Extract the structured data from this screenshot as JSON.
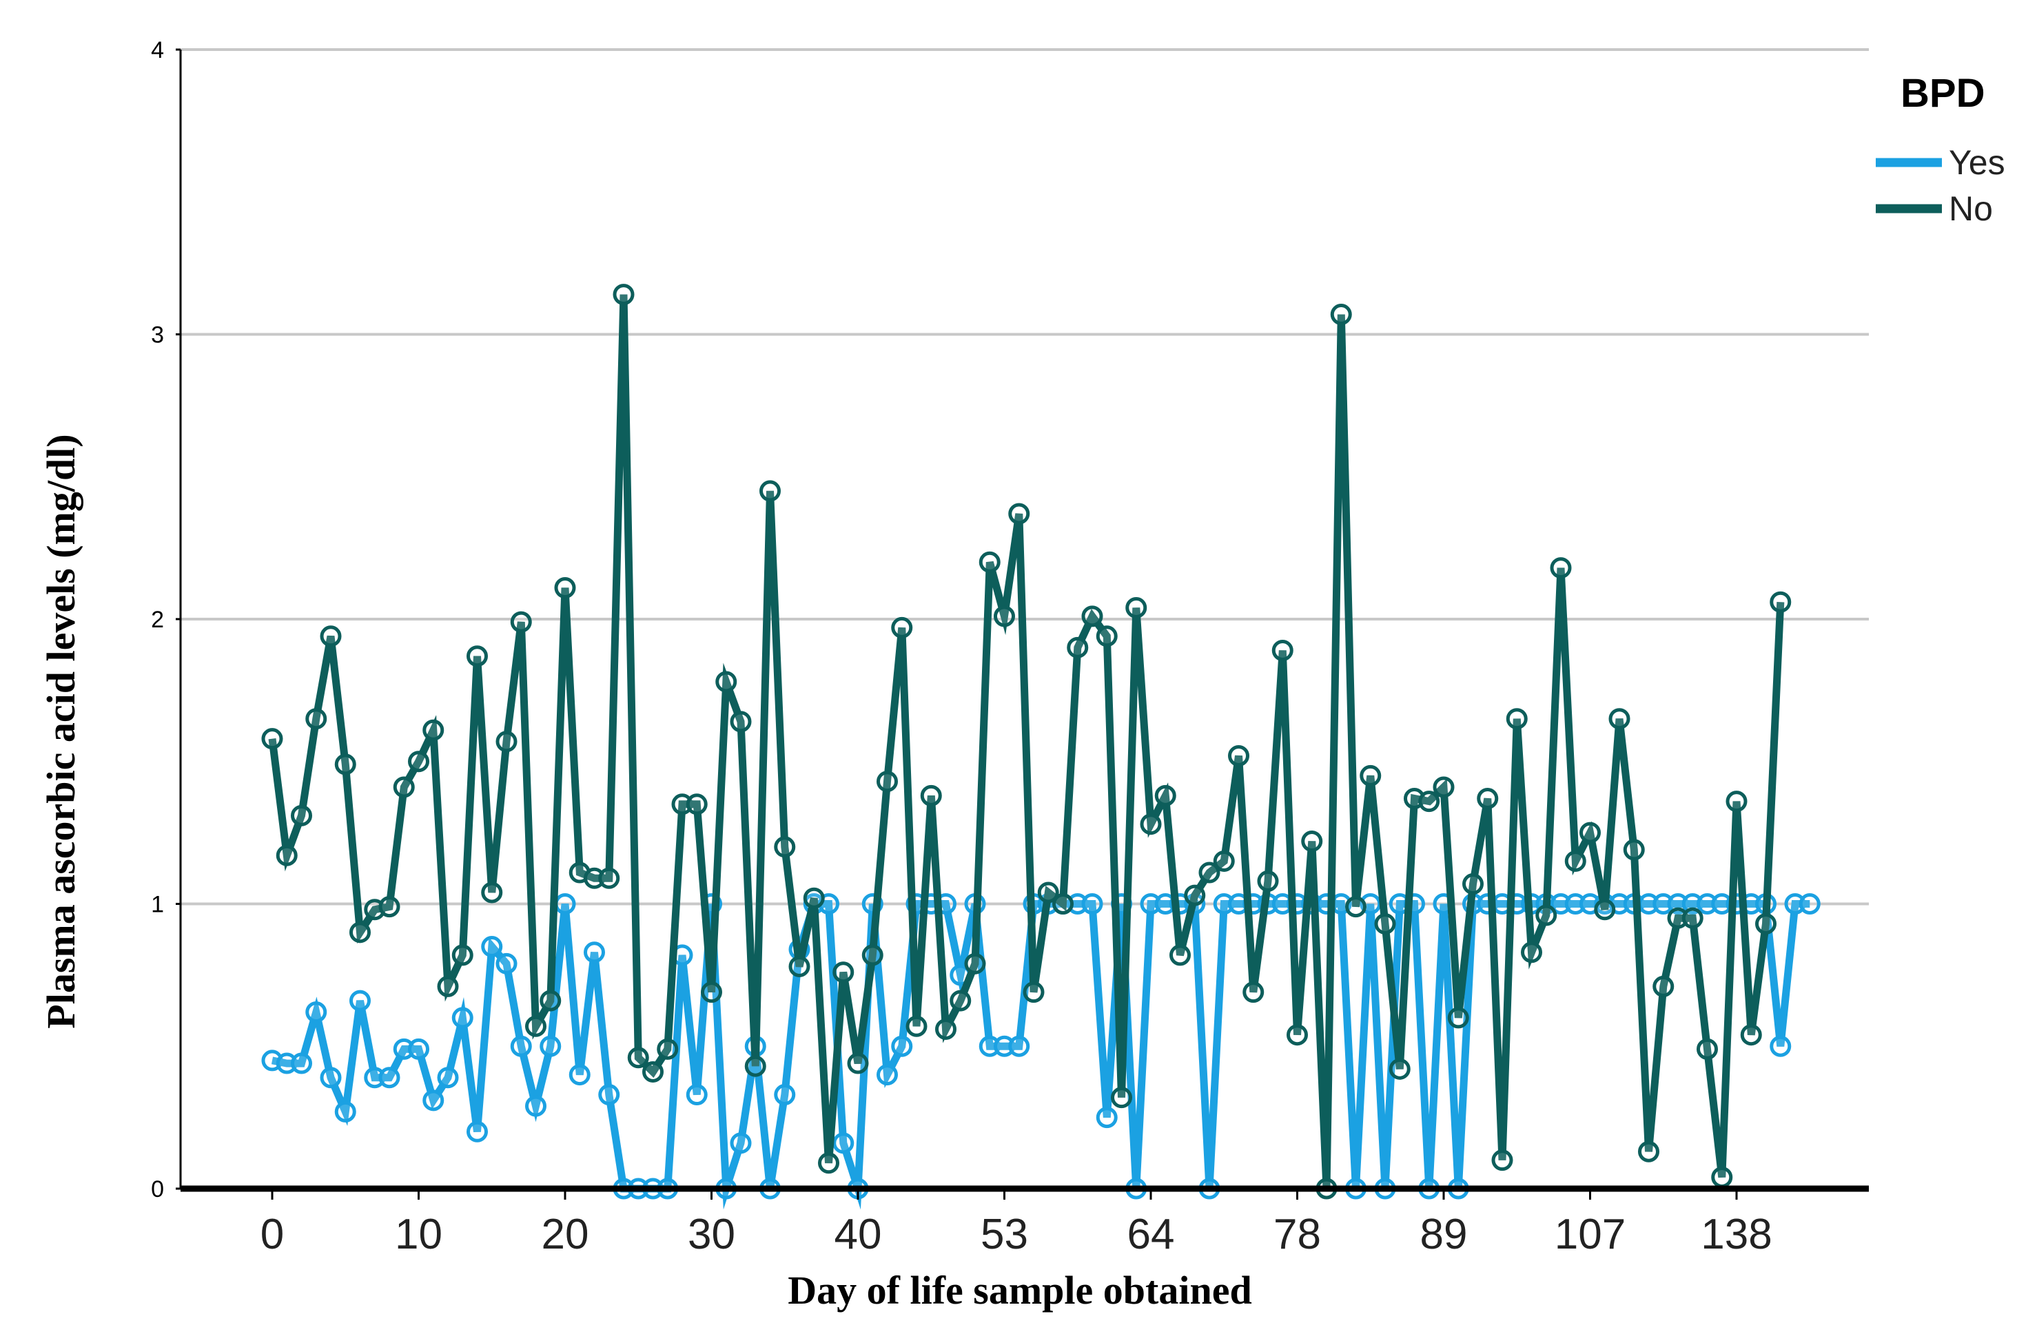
{
  "chart_data": {
    "type": "line",
    "title": "",
    "xlabel": "Day of life sample obtained",
    "ylabel": "Plasma ascorbic acid levels (mg/dl)",
    "ylim": [
      0,
      4
    ],
    "y_ticks": [
      0,
      1,
      2,
      3,
      4
    ],
    "x_tick_labels": [
      "0",
      "10",
      "20",
      "30",
      "40",
      "53",
      "64",
      "78",
      "89",
      "107",
      "138"
    ],
    "grid": true,
    "legend": {
      "title": "BPD",
      "position": "top-right"
    },
    "series": [
      {
        "name": "Yes",
        "color": "#1ba1e2",
        "values": [
          0.45,
          0.44,
          0.44,
          0.62,
          0.39,
          0.27,
          0.66,
          0.39,
          0.39,
          0.49,
          0.49,
          0.31,
          0.39,
          0.6,
          0.2,
          0.85,
          0.79,
          0.5,
          0.29,
          0.5,
          1.0,
          0.4,
          0.83,
          0.33,
          0.0,
          0.0,
          0.0,
          0.0,
          0.82,
          0.33,
          1.0,
          0.0,
          0.16,
          0.5,
          0.0,
          0.33,
          0.84,
          1.0,
          1.0,
          0.16,
          0.0,
          1.0,
          0.4,
          0.5,
          1.0,
          1.0,
          1.0,
          0.75,
          1.0,
          0.5,
          0.5,
          0.5,
          1.0,
          1.0,
          1.0,
          1.0,
          1.0,
          0.25,
          1.0,
          0.0,
          1.0,
          1.0,
          1.0,
          1.0,
          0.0,
          1.0,
          1.0,
          1.0,
          1.0,
          1.0,
          1.0,
          1.0,
          1.0,
          1.0,
          0.0,
          1.0,
          0.0,
          1.0,
          1.0,
          0.0,
          1.0,
          0.0,
          1.0,
          1.0,
          1.0,
          1.0,
          1.0,
          1.0,
          1.0,
          1.0,
          1.0,
          1.0,
          1.0,
          1.0,
          1.0,
          1.0,
          1.0,
          1.0,
          1.0,
          1.0,
          1.0,
          1.0,
          1.0,
          0.5,
          1.0,
          1.0
        ]
      },
      {
        "name": "No",
        "color": "#0d5e5b",
        "values": [
          1.58,
          1.17,
          1.31,
          1.65,
          1.94,
          1.49,
          0.9,
          0.98,
          0.99,
          1.41,
          1.5,
          1.61,
          0.71,
          0.82,
          1.87,
          1.04,
          1.57,
          1.99,
          0.57,
          0.66,
          2.11,
          1.11,
          1.09,
          1.09,
          3.14,
          0.46,
          0.41,
          0.49,
          1.35,
          1.35,
          0.69,
          1.78,
          1.64,
          0.43,
          2.45,
          1.2,
          0.78,
          1.02,
          0.09,
          0.76,
          0.44,
          0.82,
          1.43,
          1.97,
          0.57,
          1.38,
          0.56,
          0.66,
          0.79,
          2.2,
          2.01,
          2.37,
          0.69,
          1.04,
          1.0,
          1.9,
          2.01,
          1.94,
          0.32,
          2.04,
          1.28,
          1.38,
          0.82,
          1.03,
          1.11,
          1.15,
          1.52,
          0.69,
          1.08,
          1.89,
          0.54,
          1.22,
          0.0,
          3.07,
          0.99,
          1.45,
          0.93,
          0.42,
          1.37,
          1.36,
          1.41,
          0.6,
          1.07,
          1.37,
          0.1,
          1.65,
          0.83,
          0.96,
          2.18,
          1.15,
          1.25,
          0.98,
          1.65,
          1.19,
          0.13,
          0.71,
          0.95,
          0.95,
          0.49,
          0.04,
          1.36,
          0.54,
          0.93,
          2.06
        ]
      }
    ]
  }
}
